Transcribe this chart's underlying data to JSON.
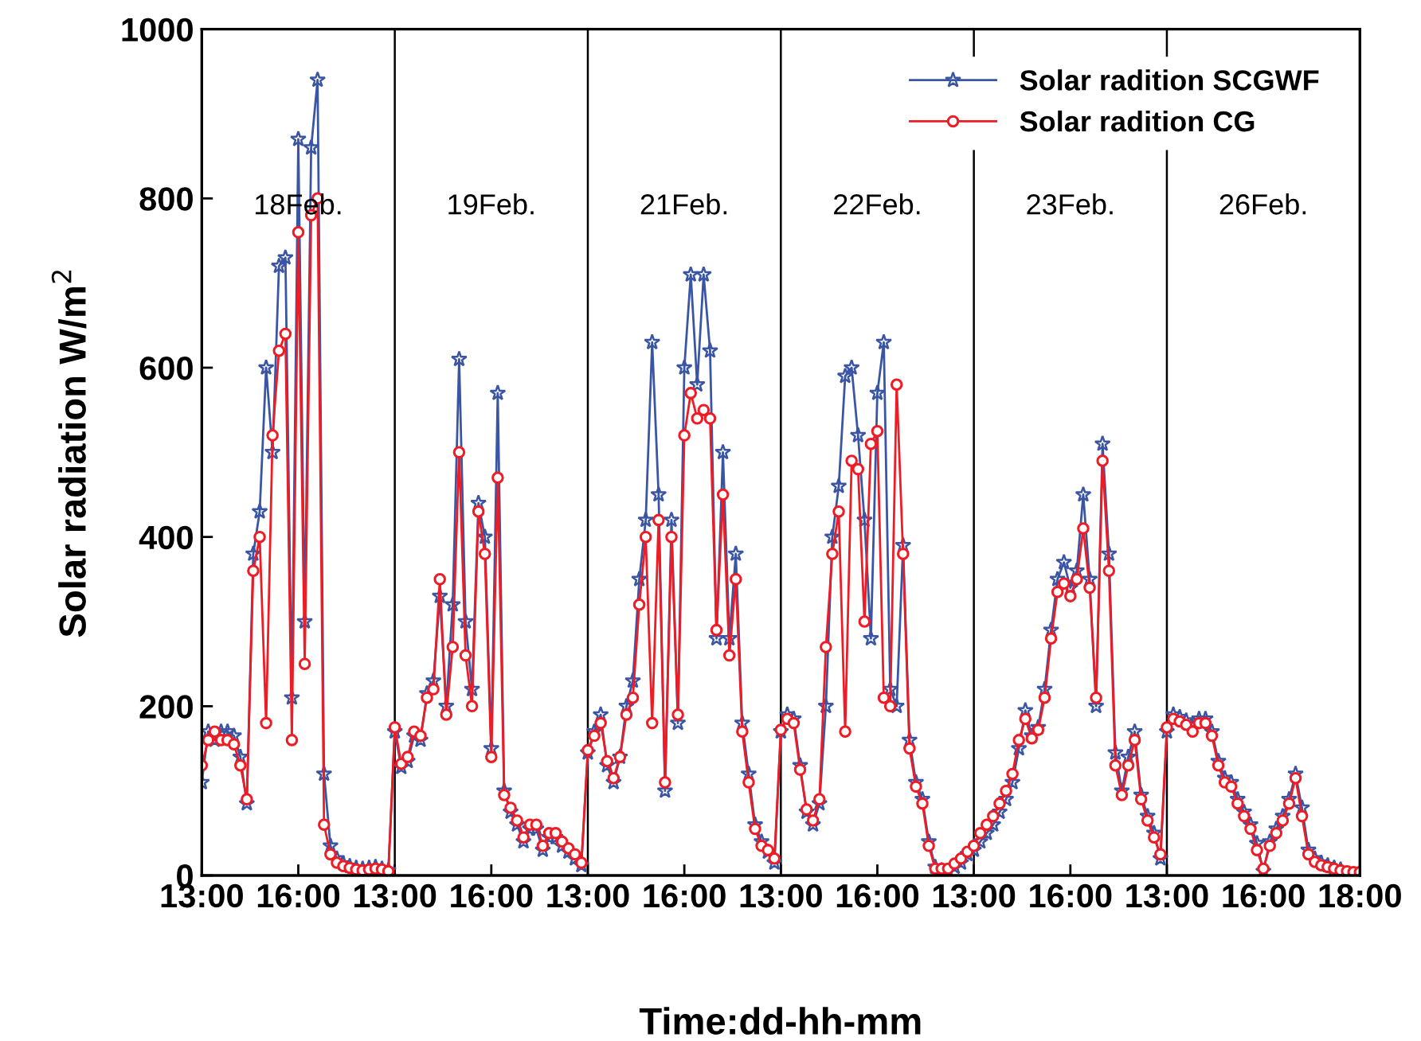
{
  "chart_data": {
    "type": "line",
    "xlabel": "Time:dd-hh-mm",
    "ylabel": "Solar radiation W/m$^{2}$",
    "ylim": [
      0,
      1000
    ],
    "yticks": [
      0,
      200,
      400,
      600,
      800,
      1000
    ],
    "categories": [
      "13:00",
      null,
      null,
      null,
      null,
      null,
      null,
      null,
      null,
      null,
      null,
      null,
      null,
      null,
      null,
      "16:00",
      null,
      null,
      null,
      null,
      null,
      null,
      null,
      null,
      null,
      null,
      null,
      null,
      null,
      null,
      "13:00",
      null,
      null,
      null,
      null,
      null,
      null,
      null,
      null,
      null,
      null,
      null,
      null,
      null,
      null,
      "16:00",
      null,
      null,
      null,
      null,
      null,
      null,
      null,
      null,
      null,
      null,
      null,
      null,
      null,
      null,
      "13:00",
      null,
      null,
      null,
      null,
      null,
      null,
      null,
      null,
      null,
      null,
      null,
      null,
      null,
      null,
      "16:00",
      null,
      null,
      null,
      null,
      null,
      null,
      null,
      null,
      null,
      null,
      null,
      null,
      null,
      null,
      "13:00",
      null,
      null,
      null,
      null,
      null,
      null,
      null,
      null,
      null,
      null,
      null,
      null,
      null,
      null,
      "16:00",
      null,
      null,
      null,
      null,
      null,
      null,
      null,
      null,
      null,
      null,
      null,
      null,
      null,
      null,
      "13:00",
      null,
      null,
      null,
      null,
      null,
      null,
      null,
      null,
      null,
      null,
      null,
      null,
      null,
      null,
      "16:00",
      null,
      null,
      null,
      null,
      null,
      null,
      null,
      null,
      null,
      null,
      null,
      null,
      null,
      null,
      "13:00",
      null,
      null,
      null,
      null,
      null,
      null,
      null,
      null,
      null,
      null,
      null,
      null,
      null,
      null,
      "16:00",
      null,
      null,
      null,
      null,
      null,
      null,
      null,
      null,
      null,
      null,
      null,
      null,
      null,
      null,
      "18:00"
    ],
    "grid": false,
    "legend": "top right",
    "annotations": [
      "18Feb.",
      "19Feb.",
      "21Feb.",
      "22Feb.",
      "23Feb.",
      "26Feb."
    ],
    "series": [
      {
        "name": "Solar radition SCGWF",
        "color": "#3a55a4",
        "marker": "star",
        "values": [
          110,
          170,
          160,
          170,
          170,
          165,
          140,
          85,
          380,
          430,
          600,
          500,
          720,
          730,
          210,
          870,
          300,
          860,
          940,
          120,
          35,
          20,
          14,
          11,
          9,
          8,
          9,
          10,
          8,
          6,
          170,
          128,
          135,
          165,
          160,
          215,
          230,
          330,
          200,
          320,
          610,
          300,
          220,
          440,
          400,
          150,
          570,
          100,
          75,
          60,
          40,
          55,
          55,
          30,
          45,
          45,
          35,
          28,
          20,
          12,
          145,
          170,
          190,
          130,
          110,
          140,
          200,
          230,
          350,
          420,
          630,
          450,
          100,
          420,
          180,
          600,
          710,
          580,
          710,
          620,
          280,
          500,
          280,
          380,
          180,
          120,
          60,
          40,
          28,
          15,
          170,
          190,
          185,
          130,
          75,
          60,
          85,
          200,
          400,
          460,
          590,
          600,
          520,
          420,
          280,
          570,
          630,
          220,
          200,
          390,
          160,
          110,
          90,
          40,
          10,
          6,
          5,
          10,
          15,
          25,
          30,
          40,
          50,
          60,
          75,
          90,
          110,
          150,
          195,
          165,
          175,
          220,
          290,
          350,
          370,
          340,
          360,
          450,
          350,
          200,
          510,
          380,
          145,
          100,
          140,
          170,
          95,
          70,
          50,
          20,
          170,
          190,
          187,
          183,
          175,
          185,
          185,
          170,
          135,
          115,
          110,
          90,
          75,
          60,
          38,
          5,
          40,
          55,
          70,
          90,
          120,
          80,
          30,
          20,
          15,
          12,
          9,
          7,
          null,
          null,
          null
        ]
      },
      {
        "name": "Solar radition CG",
        "color": "#ee1c25",
        "marker": "circle",
        "values": [
          130,
          160,
          170,
          160,
          160,
          155,
          130,
          90,
          360,
          400,
          180,
          520,
          620,
          640,
          160,
          760,
          250,
          780,
          800,
          60,
          25,
          15,
          11,
          9,
          7,
          6,
          7,
          8,
          7,
          5,
          175,
          132,
          140,
          170,
          165,
          210,
          220,
          350,
          190,
          270,
          500,
          260,
          200,
          430,
          380,
          140,
          470,
          95,
          80,
          65,
          45,
          60,
          60,
          35,
          50,
          50,
          40,
          32,
          25,
          15,
          148,
          165,
          180,
          135,
          115,
          140,
          190,
          210,
          320,
          400,
          180,
          420,
          110,
          400,
          190,
          520,
          570,
          540,
          550,
          540,
          290,
          450,
          260,
          350,
          170,
          110,
          55,
          35,
          30,
          20,
          172,
          185,
          180,
          125,
          78,
          65,
          90,
          270,
          380,
          430,
          170,
          490,
          480,
          300,
          510,
          525,
          210,
          200,
          580,
          380,
          150,
          105,
          85,
          35,
          8,
          8,
          8,
          14,
          20,
          28,
          35,
          50,
          60,
          70,
          85,
          100,
          120,
          160,
          185,
          162,
          172,
          210,
          280,
          335,
          345,
          330,
          350,
          410,
          340,
          210,
          490,
          360,
          130,
          95,
          130,
          160,
          90,
          65,
          45,
          25,
          175,
          185,
          182,
          178,
          170,
          180,
          180,
          165,
          130,
          110,
          105,
          85,
          70,
          55,
          30,
          8,
          35,
          50,
          65,
          85,
          115,
          70,
          25,
          16,
          12,
          10,
          8,
          6,
          5,
          4,
          4
        ]
      }
    ]
  }
}
